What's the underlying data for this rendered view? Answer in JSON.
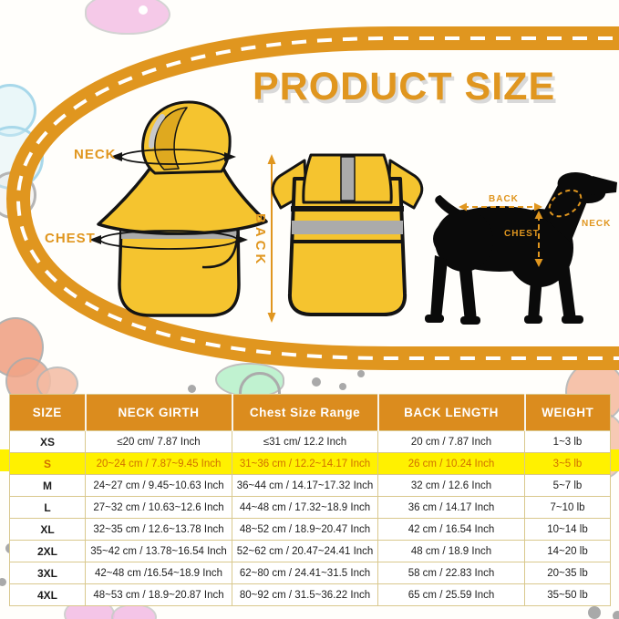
{
  "title": "PRODUCT SIZE",
  "diagram": {
    "coat_front": {
      "neck_label": "NECK",
      "chest_label": "CHEST"
    },
    "coat_back": {
      "back_label": "BACK"
    },
    "dog": {
      "back_label": "BACK",
      "chest_label": "CHEST",
      "neck_label": "NECK"
    }
  },
  "size_table": {
    "headers": [
      "SIZE",
      "NECK GIRTH",
      "Chest Size Range",
      "BACK LENGTH",
      "WEIGHT"
    ],
    "rows": [
      {
        "highlight": false,
        "cells": [
          "XS",
          "≤20 cm/ 7.87 Inch",
          "≤31 cm/ 12.2 Inch",
          "20 cm / 7.87 Inch",
          "1~3 lb"
        ]
      },
      {
        "highlight": true,
        "cells": [
          "S",
          "20~24 cm / 7.87~9.45 Inch",
          "31~36 cm / 12.2~14.17 Inch",
          "26 cm / 10.24 Inch",
          "3~5 lb"
        ]
      },
      {
        "highlight": false,
        "cells": [
          "M",
          "24~27 cm / 9.45~10.63 Inch",
          "36~44 cm / 14.17~17.32 Inch",
          "32 cm / 12.6 Inch",
          "5~7 lb"
        ]
      },
      {
        "highlight": false,
        "cells": [
          "L",
          "27~32 cm / 10.63~12.6 Inch",
          "44~48 cm / 17.32~18.9 Inch",
          "36 cm / 14.17 Inch",
          "7~10 lb"
        ]
      },
      {
        "highlight": false,
        "cells": [
          "XL",
          "32~35 cm / 12.6~13.78 Inch",
          "48~52 cm / 18.9~20.47 Inch",
          "42 cm / 16.54 Inch",
          "10~14 lb"
        ]
      },
      {
        "highlight": false,
        "cells": [
          "2XL",
          "35~42 cm / 13.78~16.54 Inch",
          "52~62 cm / 20.47~24.41 Inch",
          "48 cm / 18.9 Inch",
          "14~20 lb"
        ]
      },
      {
        "highlight": false,
        "cells": [
          "3XL",
          "42~48 cm /16.54~18.9 Inch",
          "62~80 cm / 24.41~31.5 Inch",
          "58 cm / 22.83 Inch",
          "20~35 lb"
        ]
      },
      {
        "highlight": false,
        "cells": [
          "4XL",
          "48~53 cm / 18.9~20.87 Inch",
          "80~92 cm / 31.5~36.22 Inch",
          "65 cm / 25.59 Inch",
          "35~50 lb"
        ]
      }
    ]
  },
  "colors": {
    "accent_orange": "#E0961F",
    "header_orange": "#DB8C1E",
    "highlight_yellow": "#FFF100",
    "highlight_text": "#D06F00",
    "coat_yellow": "#F5C42F",
    "reflective_gray": "#ABABAB",
    "trim_black": "#141414"
  }
}
